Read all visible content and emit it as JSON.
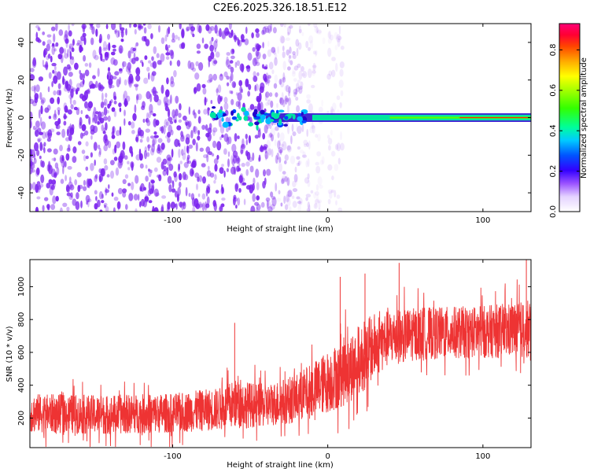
{
  "title": "C2E6.2025.326.18.51.E12",
  "colors": {
    "snr_line": "#ee3333",
    "spectrogram_noise": "#7b22ee",
    "axis": "#000000"
  },
  "chart_data": [
    {
      "type": "heatmap",
      "name": "spectrogram",
      "xlabel": "Height of straight line (km)",
      "ylabel": "Frequency (Hz)",
      "xlim": [
        -192,
        131
      ],
      "ylim": [
        -50,
        50
      ],
      "x_ticks": [
        {
          "value": -100,
          "label": "-100"
        },
        {
          "value": 0,
          "label": "0"
        },
        {
          "value": 100,
          "label": "100"
        }
      ],
      "y_ticks": [
        {
          "value": -40,
          "label": "-40"
        },
        {
          "value": -20,
          "label": "-20"
        },
        {
          "value": 0,
          "label": "0"
        },
        {
          "value": 20,
          "label": "20"
        },
        {
          "value": 40,
          "label": "40"
        }
      ],
      "signal_band_hz": [
        -1.5,
        1.5
      ],
      "signal_onset_km": -75,
      "noise_fade_km": [
        -40,
        0
      ]
    },
    {
      "type": "colorbar",
      "name": "colorbar",
      "label": "Normalized spectral amplitude",
      "range": [
        0,
        0.93
      ],
      "ticks": [
        {
          "value": 0.0,
          "label": "0.0"
        },
        {
          "value": 0.2,
          "label": "0.2"
        },
        {
          "value": 0.4,
          "label": "0.4"
        },
        {
          "value": 0.6,
          "label": "0.6"
        },
        {
          "value": 0.8,
          "label": "0.8"
        }
      ]
    },
    {
      "type": "line",
      "name": "snr",
      "xlabel": "Height of straight line (km)",
      "ylabel": "SNR (10 * v/v)",
      "xlim": [
        -192,
        131
      ],
      "ylim": [
        20,
        1165
      ],
      "x_ticks": [
        {
          "value": -100,
          "label": "-100"
        },
        {
          "value": 0,
          "label": "0"
        },
        {
          "value": 100,
          "label": "100"
        }
      ],
      "y_ticks": [
        {
          "value": 200,
          "label": "200"
        },
        {
          "value": 400,
          "label": "400"
        },
        {
          "value": 600,
          "label": "600"
        },
        {
          "value": 800,
          "label": "800"
        },
        {
          "value": 1000,
          "label": "1000"
        }
      ],
      "envelope": {
        "x": [
          -192,
          -150,
          -100,
          -70,
          -60,
          -40,
          -20,
          -10,
          0,
          10,
          20,
          30,
          40,
          60,
          80,
          100,
          120,
          131
        ],
        "mean": [
          230,
          220,
          230,
          255,
          285,
          275,
          320,
          370,
          420,
          480,
          550,
          640,
          690,
          715,
          720,
          725,
          735,
          740
        ],
        "spread": [
          120,
          120,
          120,
          130,
          150,
          130,
          150,
          170,
          190,
          210,
          220,
          200,
          170,
          160,
          160,
          160,
          170,
          180
        ]
      },
      "peaks": [
        {
          "x": -60,
          "value": 780
        },
        {
          "x": 8,
          "value": 1060
        },
        {
          "x": 24,
          "value": 1080
        },
        {
          "x": 46,
          "value": 1145
        },
        {
          "x": 128,
          "value": 1165
        }
      ]
    }
  ]
}
